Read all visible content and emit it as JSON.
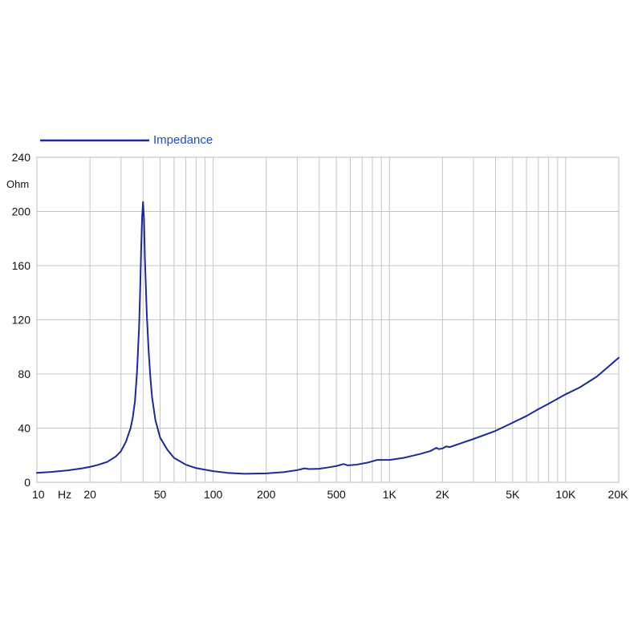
{
  "chart_data": {
    "type": "line",
    "legend": {
      "entries": [
        "Impedance"
      ],
      "placement": "top-left"
    },
    "ylabel": "Ohm",
    "xunit": "Hz",
    "x_scale": "log",
    "xlim": [
      10,
      20000
    ],
    "ylim": [
      0,
      240
    ],
    "grid": true,
    "xticks": [
      {
        "value": 10,
        "label": "10"
      },
      {
        "value": 20,
        "label": "20"
      },
      {
        "value": 50,
        "label": "50"
      },
      {
        "value": 100,
        "label": "100"
      },
      {
        "value": 200,
        "label": "200"
      },
      {
        "value": 500,
        "label": "500"
      },
      {
        "value": 1000,
        "label": "1K"
      },
      {
        "value": 2000,
        "label": "2K"
      },
      {
        "value": 5000,
        "label": "5K"
      },
      {
        "value": 10000,
        "label": "10K"
      },
      {
        "value": 20000,
        "label": "20K"
      }
    ],
    "yticks": [
      0,
      40,
      80,
      120,
      160,
      200,
      240
    ],
    "series": [
      {
        "name": "Impedance",
        "color": "#1a2a9c",
        "points": [
          [
            10,
            7
          ],
          [
            12,
            7.6
          ],
          [
            15,
            8.8
          ],
          [
            18,
            10.3
          ],
          [
            20,
            11.4
          ],
          [
            22,
            12.7
          ],
          [
            25,
            15
          ],
          [
            28,
            19
          ],
          [
            30,
            23
          ],
          [
            32,
            30
          ],
          [
            34,
            40
          ],
          [
            35,
            48
          ],
          [
            36,
            60
          ],
          [
            37,
            82
          ],
          [
            38,
            115
          ],
          [
            38.5,
            140
          ],
          [
            39,
            170
          ],
          [
            39.5,
            195
          ],
          [
            40,
            207
          ],
          [
            40.5,
            195
          ],
          [
            41,
            165
          ],
          [
            42,
            125
          ],
          [
            43,
            98
          ],
          [
            44,
            78
          ],
          [
            45,
            63
          ],
          [
            47,
            46
          ],
          [
            50,
            33
          ],
          [
            55,
            24
          ],
          [
            60,
            18
          ],
          [
            70,
            13
          ],
          [
            80,
            10.5
          ],
          [
            100,
            8.2
          ],
          [
            120,
            7
          ],
          [
            150,
            6.3
          ],
          [
            200,
            6.6
          ],
          [
            250,
            7.5
          ],
          [
            300,
            9
          ],
          [
            330,
            10.3
          ],
          [
            350,
            9.8
          ],
          [
            400,
            10
          ],
          [
            450,
            11
          ],
          [
            500,
            12
          ],
          [
            550,
            13.5
          ],
          [
            580,
            12.5
          ],
          [
            650,
            13
          ],
          [
            750,
            14.5
          ],
          [
            850,
            16.5
          ],
          [
            1000,
            16.5
          ],
          [
            1200,
            18
          ],
          [
            1500,
            21
          ],
          [
            1700,
            23
          ],
          [
            1850,
            25.5
          ],
          [
            1900,
            24.5
          ],
          [
            2000,
            25
          ],
          [
            2100,
            26.5
          ],
          [
            2200,
            26
          ],
          [
            2500,
            28.5
          ],
          [
            3000,
            32
          ],
          [
            4000,
            38
          ],
          [
            5000,
            44
          ],
          [
            6000,
            49
          ],
          [
            7000,
            54
          ],
          [
            8000,
            58
          ],
          [
            10000,
            65
          ],
          [
            12000,
            70
          ],
          [
            15000,
            78
          ],
          [
            20000,
            92
          ]
        ]
      }
    ]
  }
}
